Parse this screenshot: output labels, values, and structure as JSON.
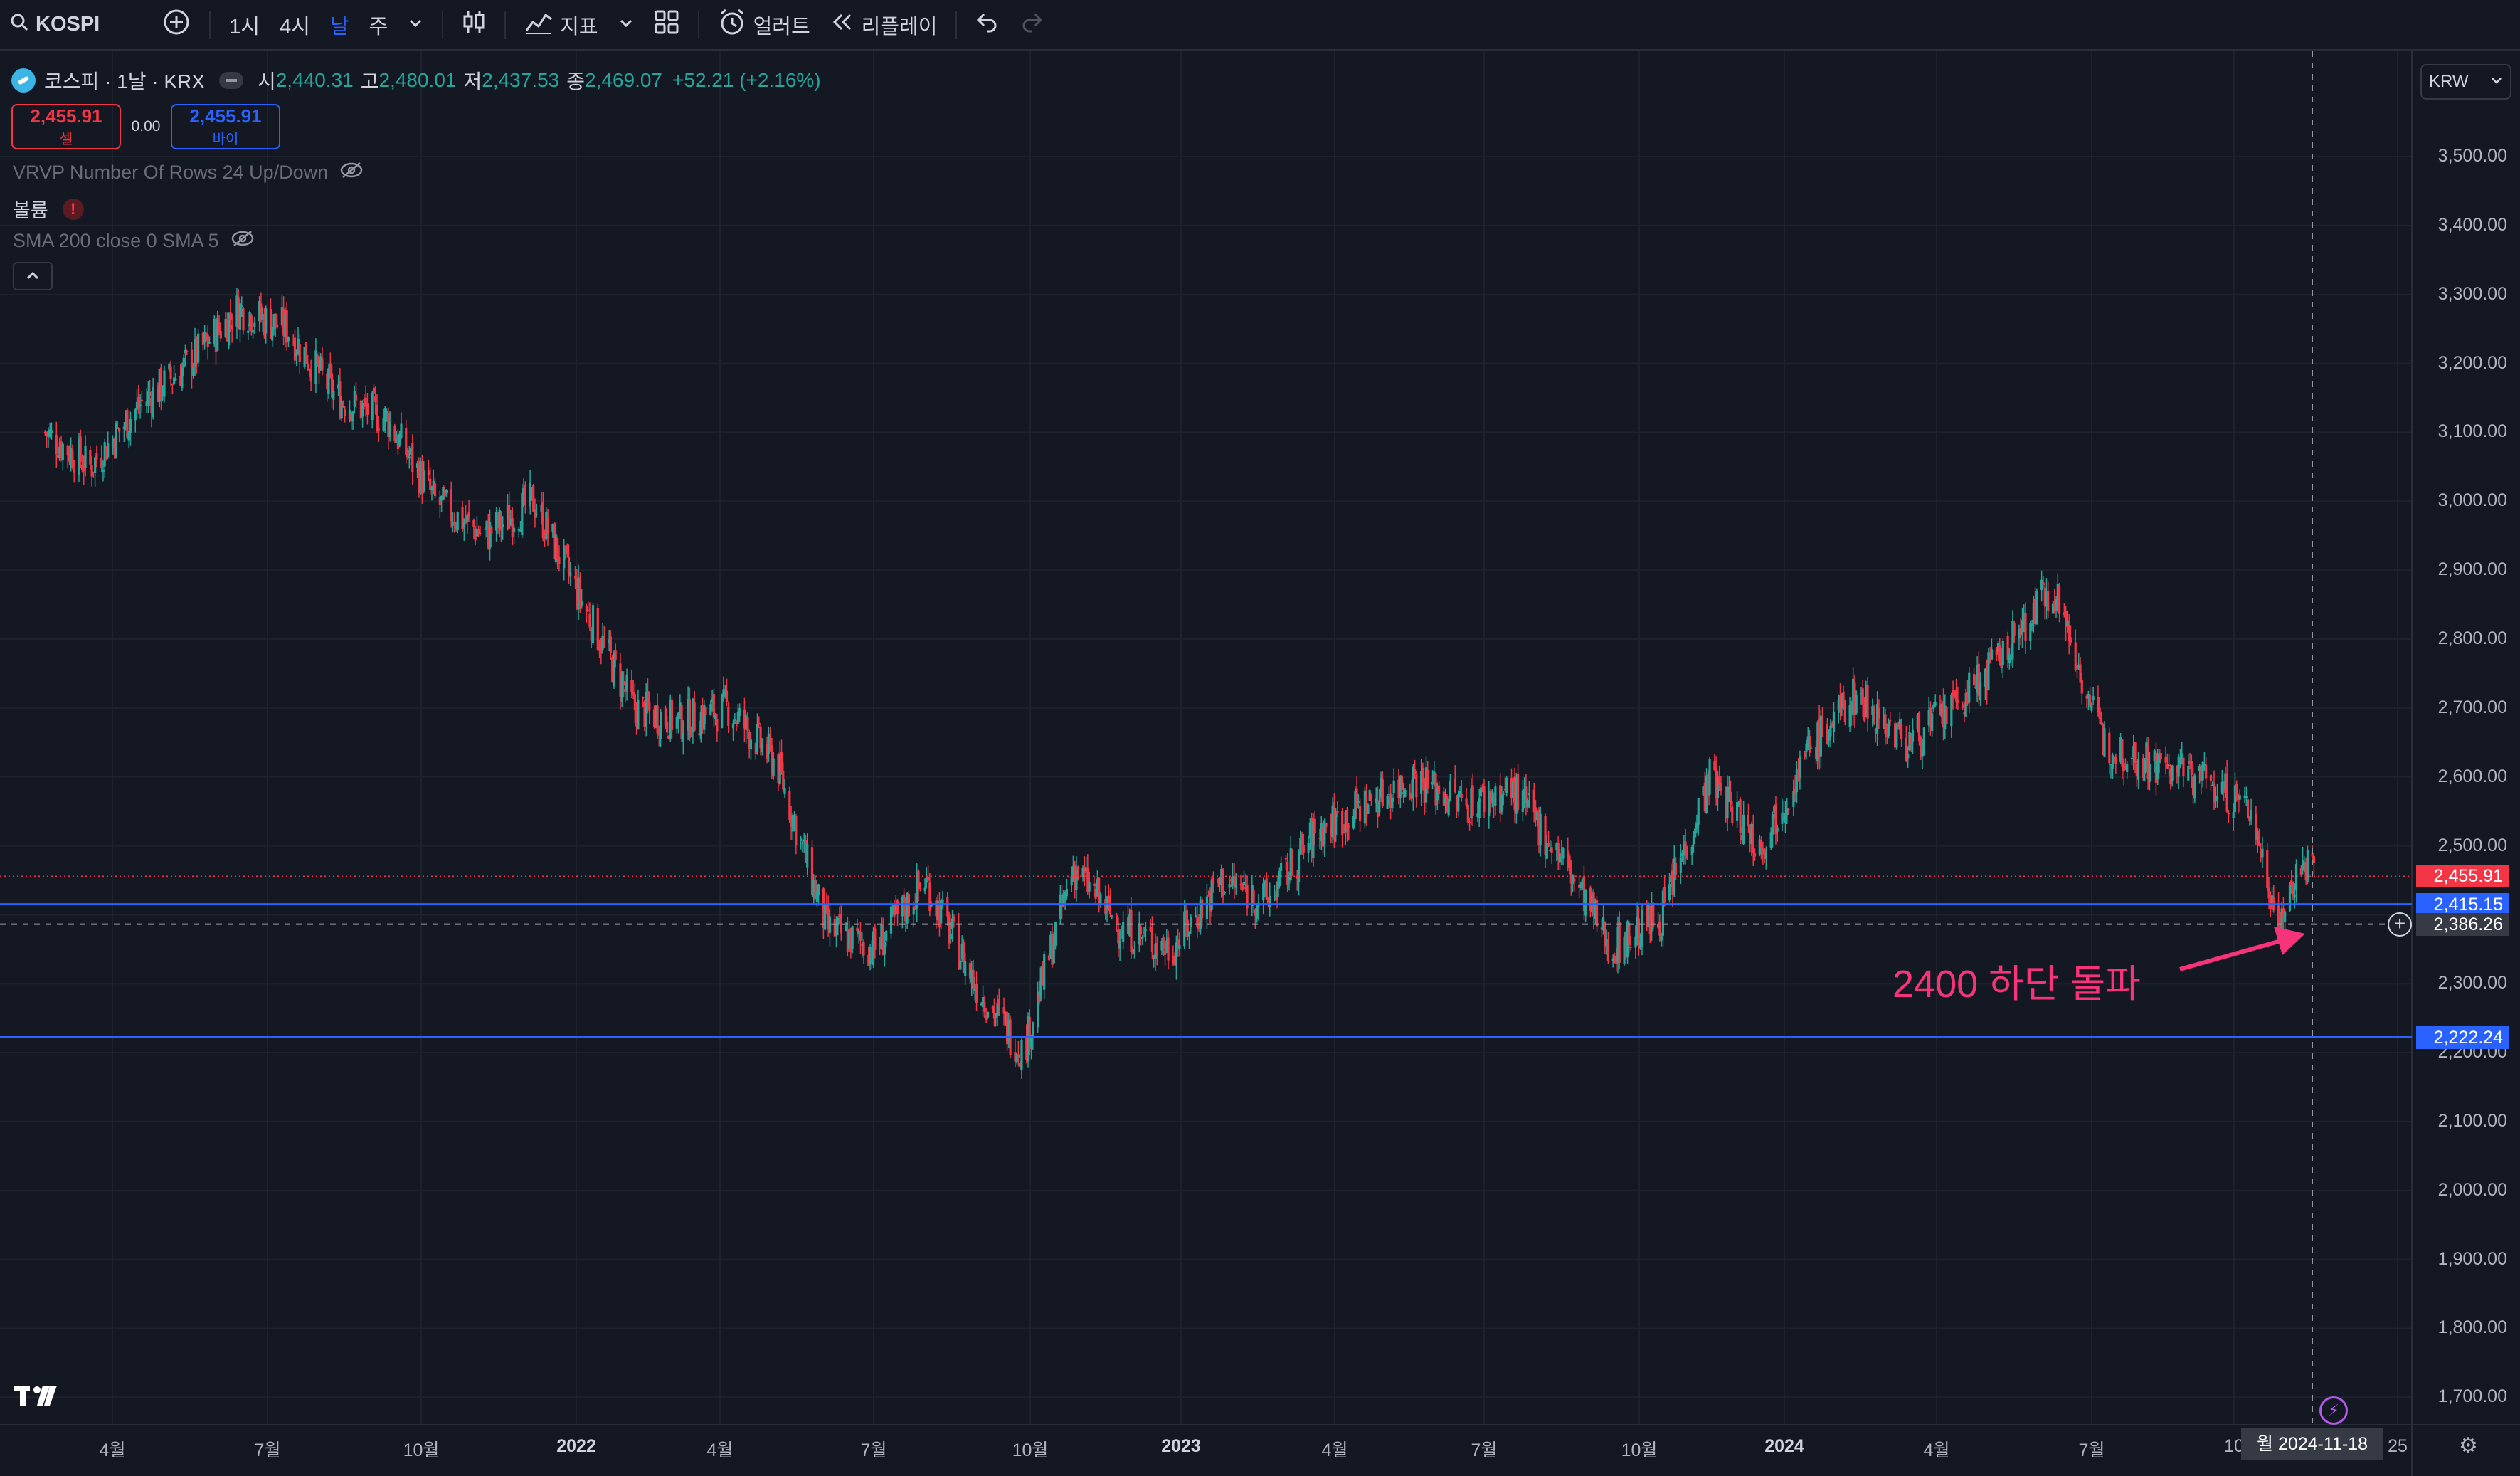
{
  "toolbar": {
    "symbol": "KOSPI",
    "intervals": [
      "1시",
      "4시",
      "날",
      "주"
    ],
    "active_interval": "날",
    "indicators_label": "지표",
    "alerts_label": "얼러트",
    "replay_label": "리플레이",
    "icons": [
      "search-icon",
      "plus-circle-icon",
      "chevron-down-icon",
      "candles-icon",
      "indicators-icon",
      "layout-icon",
      "alarm-icon",
      "replay-icon",
      "undo-icon",
      "redo-icon"
    ]
  },
  "legend": {
    "title": "코스피 · 1날 · KRX",
    "open_label": "시",
    "open": "2,440.31",
    "high_label": "고",
    "high": "2,480.01",
    "low_label": "저",
    "low": "2,437.53",
    "close_label": "종",
    "close": "2,469.07",
    "change": "+52.21 (+2.16%)"
  },
  "trade": {
    "sell_price": "2,455.91",
    "sell_label": "셀",
    "spread": "0.00",
    "buy_price": "2,455.91",
    "buy_label": "바이"
  },
  "indicators": [
    {
      "label": "VRVP Number Of Rows 24 Up/Down",
      "hidden": true
    },
    {
      "label": "볼륨",
      "warning": true
    },
    {
      "label": "SMA 200 close 0 SMA 5",
      "hidden": true
    }
  ],
  "currency": "KRW",
  "price_axis": [
    "3,500.00",
    "3,400.00",
    "3,300.00",
    "3,200.00",
    "3,100.00",
    "3,000.00",
    "2,900.00",
    "2,800.00",
    "2,700.00",
    "2,600.00",
    "2,500.00",
    "2,400.00",
    "2,300.00",
    "2,200.00",
    "2,100.00",
    "2,000.00",
    "1,900.00",
    "1,800.00",
    "1,700.00"
  ],
  "price_tags": {
    "last": "2,455.91",
    "line_upper": "2,415.15",
    "crosshair": "2,386.26",
    "line_lower": "2,222.24"
  },
  "date_axis": [
    "4월",
    "7월",
    "10월",
    "2022",
    "4월",
    "7월",
    "10월",
    "2023",
    "4월",
    "7월",
    "10월",
    "2024",
    "4월",
    "7월",
    "10",
    "25"
  ],
  "crosshair_date": "월 2024-11-18",
  "annotation": "2400 하단 돌파",
  "colors": {
    "up": "#26a69a",
    "down": "#f23645",
    "hline": "#2962ff",
    "annotation": "#f7347a"
  },
  "chart_data": {
    "type": "line",
    "title": "",
    "xlabel": "",
    "ylabel": "",
    "ylim": [
      1650,
      3570
    ],
    "series": [
      {
        "x": [
          "2021-02-01",
          "2021-03-01",
          "2021-04-01",
          "2021-05-01",
          "2021-06-01",
          "2021-07-01",
          "2021-08-01",
          "2021-09-01",
          "2021-10-01",
          "2021-11-01",
          "2021-12-01",
          "2022-01-01",
          "2022-02-01",
          "2022-03-01",
          "2022-04-01",
          "2022-05-01",
          "2022-06-01",
          "2022-07-01",
          "2022-08-01",
          "2022-09-01",
          "2022-10-01",
          "2022-11-01",
          "2022-12-01",
          "2023-01-01",
          "2023-02-01",
          "2023-03-01",
          "2023-04-01",
          "2023-05-01",
          "2023-06-01",
          "2023-07-01",
          "2023-08-01",
          "2023-09-01",
          "2023-10-01",
          "2023-11-01",
          "2023-12-01",
          "2024-01-01",
          "2024-02-01",
          "2024-03-01",
          "2024-04-01",
          "2024-05-01",
          "2024-06-01",
          "2024-07-01",
          "2024-08-01",
          "2024-09-01",
          "2024-10-01",
          "2024-11-01",
          "2024-11-18",
          "2024-12-01"
        ],
        "y": [
          3100,
          3050,
          3140,
          3200,
          3280,
          3250,
          3150,
          3120,
          3000,
          2950,
          3000,
          2850,
          2700,
          2680,
          2700,
          2620,
          2380,
          2350,
          2450,
          2300,
          2200,
          2470,
          2380,
          2350,
          2450,
          2420,
          2520,
          2560,
          2600,
          2560,
          2580,
          2480,
          2350,
          2400,
          2600,
          2500,
          2640,
          2720,
          2650,
          2700,
          2780,
          2880,
          2650,
          2620,
          2600,
          2550,
          2386,
          2470
        ]
      }
    ],
    "horizontal_lines": [
      2415.15,
      2222.24
    ],
    "last_price": 2455.91
  }
}
